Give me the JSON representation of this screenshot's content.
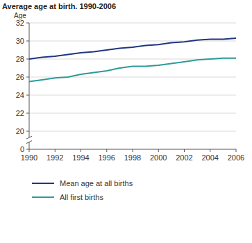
{
  "chart_data": {
    "type": "line",
    "title": "Average age at birth. 1990-2006",
    "y_label": "Age",
    "x": [
      1990,
      1991,
      1992,
      1993,
      1994,
      1995,
      1996,
      1997,
      1998,
      1999,
      2000,
      2001,
      2002,
      2003,
      2004,
      2005,
      2006
    ],
    "series": [
      {
        "name": "Mean age at all births",
        "color": "#1f3580",
        "values": [
          28.0,
          28.2,
          28.3,
          28.5,
          28.7,
          28.8,
          29.0,
          29.2,
          29.3,
          29.5,
          29.6,
          29.8,
          29.9,
          30.1,
          30.2,
          30.2,
          30.3
        ]
      },
      {
        "name": "All first births",
        "color": "#2b9b98",
        "values": [
          25.5,
          25.7,
          25.9,
          26.0,
          26.3,
          26.5,
          26.7,
          27.0,
          27.2,
          27.2,
          27.3,
          27.5,
          27.7,
          27.9,
          28.0,
          28.1,
          28.1
        ]
      }
    ],
    "xlim": [
      1990,
      2006
    ],
    "xticks": [
      1990,
      1992,
      1994,
      1996,
      1998,
      2000,
      2002,
      2004,
      2006
    ],
    "ylim": [
      0,
      32
    ],
    "yticks": [
      0,
      20,
      22,
      24,
      26,
      28,
      30,
      32
    ],
    "grid": true,
    "legend": "bottom-left"
  }
}
